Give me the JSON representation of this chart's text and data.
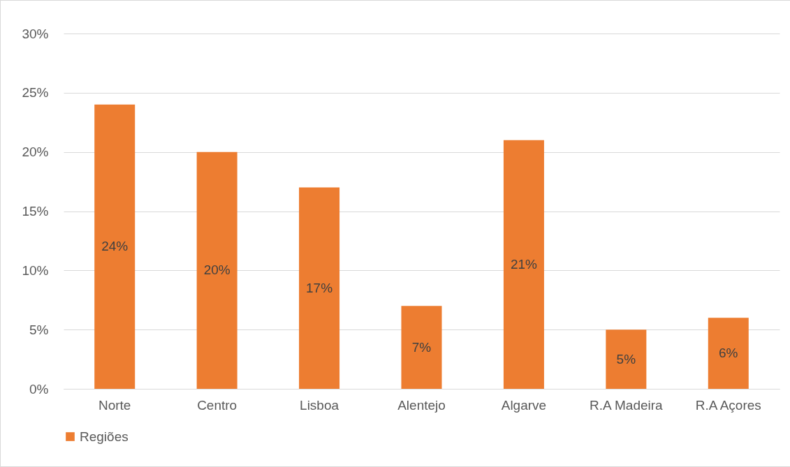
{
  "chart_data": {
    "type": "bar",
    "categories": [
      "Norte",
      "Centro",
      "Lisboa",
      "Alentejo",
      "Algarve",
      "R.A Madeira",
      "R.A Açores"
    ],
    "series": [
      {
        "name": "Regiões",
        "color": "#ed7d31",
        "values": [
          24,
          20,
          17,
          7,
          21,
          5,
          6
        ],
        "value_labels": [
          "24%",
          "20%",
          "17%",
          "7%",
          "21%",
          "5%",
          "6%"
        ]
      }
    ],
    "ylim": [
      0,
      30
    ],
    "yticks": [
      {
        "value": 0,
        "label": "0%"
      },
      {
        "value": 5,
        "label": "5%"
      },
      {
        "value": 10,
        "label": "10%"
      },
      {
        "value": 15,
        "label": "15%"
      },
      {
        "value": 20,
        "label": "20%"
      },
      {
        "value": 25,
        "label": "25%"
      },
      {
        "value": 30,
        "label": "30%"
      }
    ],
    "grid": "y",
    "legend": "bottom"
  }
}
